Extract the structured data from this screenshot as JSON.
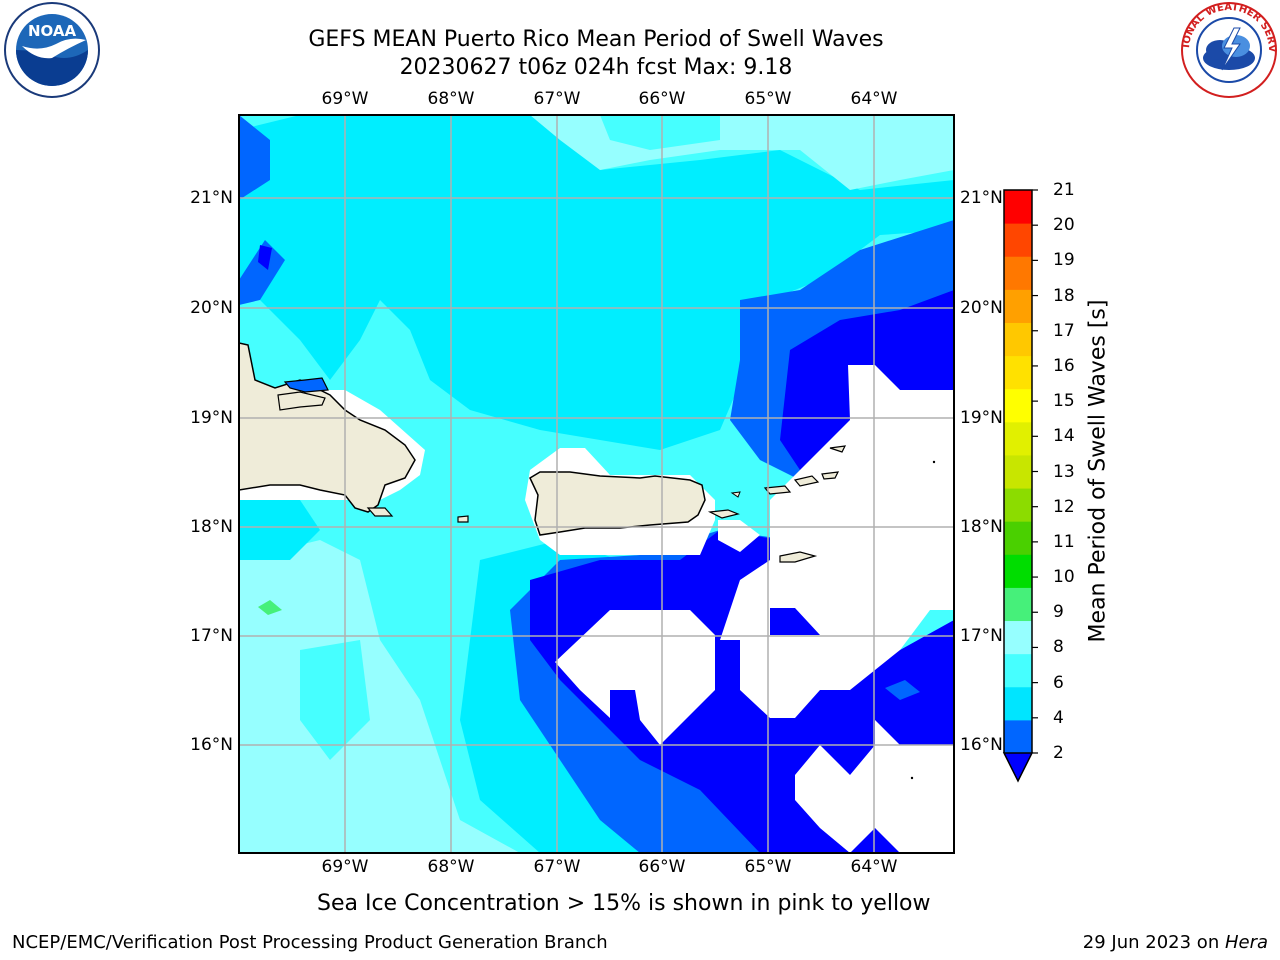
{
  "header": {
    "title_line1": "GEFS MEAN Puerto Rico Mean Period of Swell Waves",
    "title_line2": "20230627 t06z 024h fcst   Max: 9.18"
  },
  "logos": {
    "left": {
      "name": "noaa-logo",
      "text": "NOAA"
    },
    "right": {
      "name": "nws-logo",
      "text": "NATIONAL WEATHER SERVICE"
    }
  },
  "map": {
    "lon_labels": [
      "69°W",
      "68°W",
      "67°W",
      "66°W",
      "65°W",
      "64°W"
    ],
    "lat_labels": [
      "21°N",
      "20°N",
      "19°N",
      "18°N",
      "17°N",
      "16°N"
    ],
    "land_color": "#efecd9",
    "gridline_color": "#b0b0b0"
  },
  "colorbar": {
    "label": "Mean Period of Swell Waves [s]",
    "ticks": [
      "2",
      "4",
      "6",
      "8",
      "9",
      "10",
      "11",
      "12",
      "13",
      "14",
      "15",
      "16",
      "17",
      "18",
      "19",
      "20",
      "21"
    ],
    "colors": [
      "#0066ff",
      "#00e5ff",
      "#46ffff",
      "#96ffff",
      "#46f07a",
      "#00dd00",
      "#4ad000",
      "#8cdc00",
      "#c8e600",
      "#e1f000",
      "#ffff00",
      "#ffe100",
      "#ffc800",
      "#ffa000",
      "#ff7800",
      "#ff4600",
      "#ff0000"
    ],
    "under_color": "#0000ff"
  },
  "caption": "Sea Ice Concentration > 15% is shown in pink to yellow",
  "footer": {
    "left": "NCEP/EMC/Verification Post Processing Product Generation Branch",
    "right_date": "29 Jun 2023 on ",
    "right_machine": "Hera"
  }
}
